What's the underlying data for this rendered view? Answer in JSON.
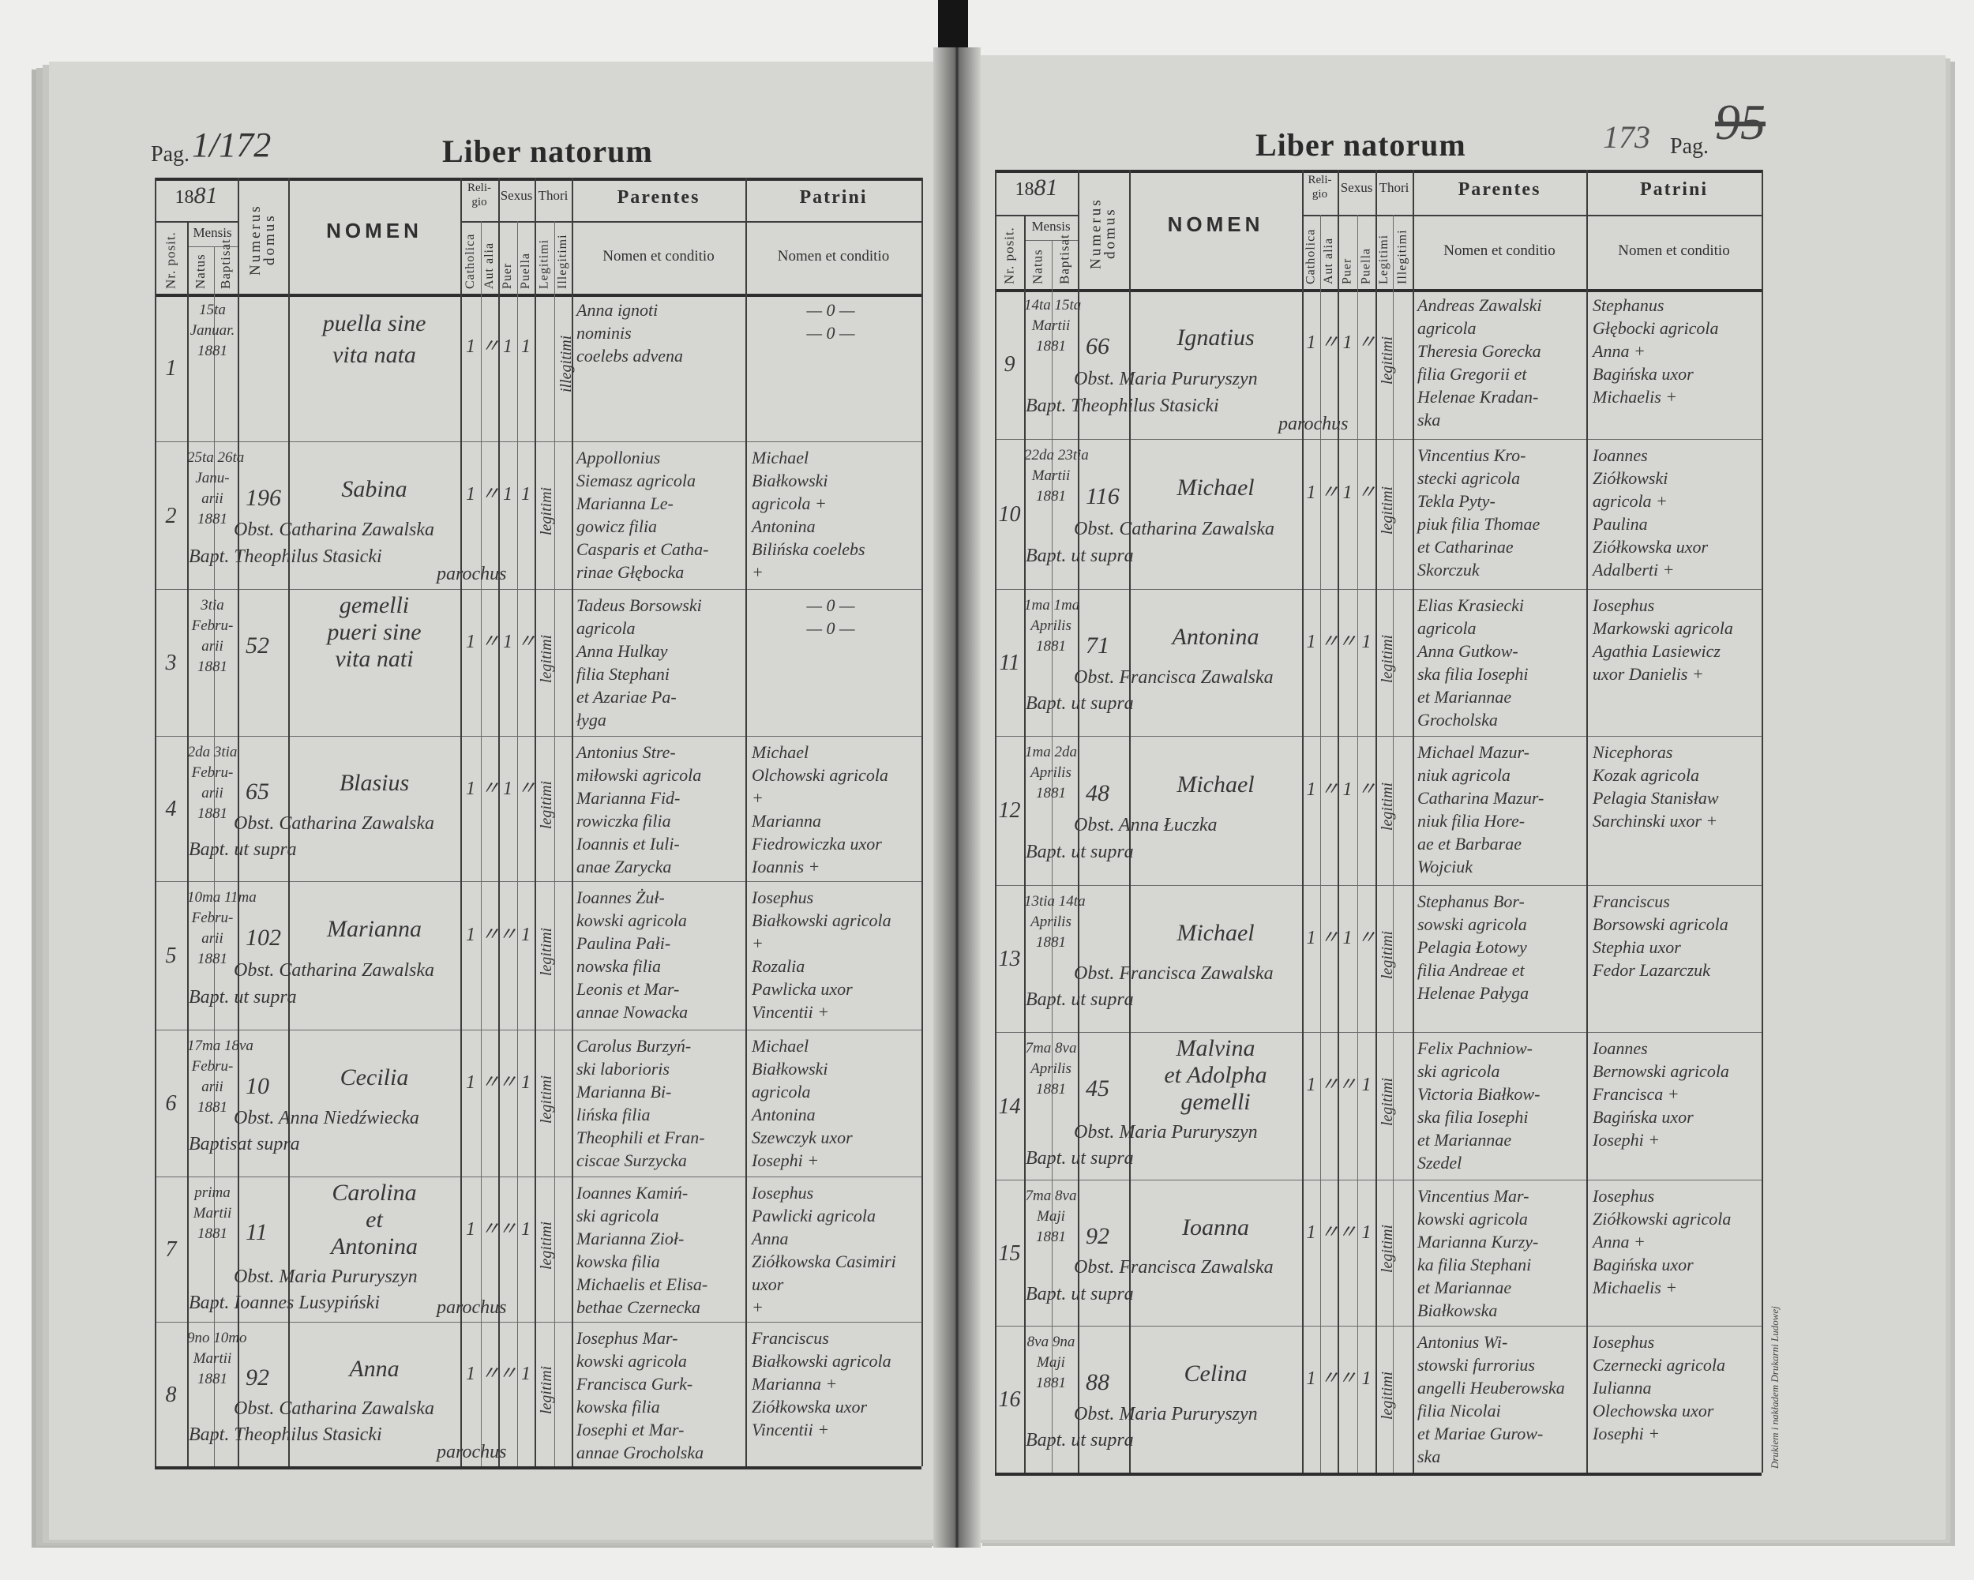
{
  "imprint": "Drukiem i nakładem Drukarni Ludowej",
  "header": {
    "year_prefix": "18",
    "nr_posit": "Nr. posit.",
    "mensis": "Mensis",
    "natus": "Natus",
    "baptisat": "Baptisat",
    "numerus_domus": "Numerus domus",
    "nomen": "NOMEN",
    "religio": "Reli-gio",
    "sexus": "Sexus",
    "thori": "Thori",
    "catholica": "Catholica",
    "aut_alia": "Aut alia",
    "puer": "Puer",
    "puella": "Puella",
    "legitimi": "Legitimi",
    "illegitimi": "Illegitimi",
    "parentes": "Parentes",
    "patrini": "Patrini",
    "nomen_et_conditio": "Nomen et conditio"
  },
  "left_page": {
    "title": "Liber natorum",
    "pag_label": "Pag.",
    "page_number_handwritten": "1/172",
    "year_handwritten": "81",
    "rows": [
      {
        "nr": "1",
        "date": [
          "15ta",
          "Januar.",
          "1881"
        ],
        "domus": "",
        "nomen": [
          "puella sine",
          "vita nata"
        ],
        "obst": "",
        "bapt": "",
        "bapt2": "",
        "cath": "1",
        "aut": "〃",
        "puer": "1",
        "puella": "1",
        "thori": "illegitimi",
        "thori_col": "illeg",
        "parentes": [
          "Anna ignoti",
          "nominis",
          "coelebs advena"
        ],
        "patrini": [
          "— 0 —",
          "",
          "— 0 —"
        ]
      },
      {
        "nr": "2",
        "date": [
          "25ta 26ta",
          "Janu-",
          "arii",
          "1881"
        ],
        "domus": "196",
        "nomen": [
          "Sabina"
        ],
        "obst": "Obst. Catharina Zawalska",
        "bapt": "Bapt. Theophilus Stasicki",
        "bapt2": "parochus",
        "cath": "1",
        "aut": "〃",
        "puer": "1",
        "puella": "1",
        "thori": "legitimi",
        "thori_col": "leg",
        "parentes": [
          "Appollonius",
          "Siemasz agricola",
          "Marianna Le-",
          "gowicz filia",
          "Casparis et Catha-",
          "rinae Głębocka"
        ],
        "patrini": [
          "Michael",
          "Białkowski",
          "agricola +",
          "Antonina",
          "Bilińska coelebs",
          "+"
        ]
      },
      {
        "nr": "3",
        "date": [
          "3tia",
          "Febru-",
          "arii",
          "1881"
        ],
        "domus": "52",
        "nomen": [
          "gemelli",
          "pueri sine",
          "vita nati"
        ],
        "obst": "",
        "bapt": "",
        "bapt2": "",
        "cath": "1",
        "aut": "〃",
        "puer": "1",
        "puella": "〃",
        "thori": "legitimi",
        "thori_col": "leg",
        "parentes": [
          "Tadeus Borsowski",
          "agricola",
          "Anna Hulkay",
          "filia Stephani",
          "et Azariae Pa-",
          "łyga"
        ],
        "patrini": [
          "",
          "— 0 —",
          "",
          "— 0 —"
        ]
      },
      {
        "nr": "4",
        "date": [
          "2da 3tia",
          "Febru-",
          "arii",
          "1881"
        ],
        "domus": "65",
        "nomen": [
          "Blasius"
        ],
        "obst": "Obst. Catharina Zawalska",
        "bapt": "Bapt. ut supra",
        "bapt2": "",
        "cath": "1",
        "aut": "〃",
        "puer": "1",
        "puella": "〃",
        "thori": "legitimi",
        "thori_col": "leg",
        "parentes": [
          "Antonius Stre-",
          "miłowski agricola",
          "Marianna Fid-",
          "rowiczka filia",
          "Ioannis et Iuli-",
          "anae Zarycka"
        ],
        "patrini": [
          "Michael",
          "Olchowski agricola",
          "+",
          "Marianna",
          "Fiedrowiczka uxor",
          "Ioannis +"
        ]
      },
      {
        "nr": "5",
        "date": [
          "10ma 11ma",
          "Febru-",
          "arii",
          "1881"
        ],
        "domus": "102",
        "nomen": [
          "Marianna"
        ],
        "obst": "Obst. Catharina Zawalska",
        "bapt": "Bapt. ut supra",
        "bapt2": "",
        "cath": "1",
        "aut": "〃",
        "puer": "〃",
        "puella": "1",
        "thori": "legitimi",
        "thori_col": "leg",
        "parentes": [
          "Ioannes Żuł-",
          "kowski agricola",
          "Paulina Pałi-",
          "nowska filia",
          "Leonis et Mar-",
          "annae Nowacka"
        ],
        "patrini": [
          "Iosephus",
          "Białkowski agricola",
          "+",
          "Rozalia",
          "Pawlicka uxor",
          "Vincentii +"
        ]
      },
      {
        "nr": "6",
        "date": [
          "17ma 18va",
          "Febru-",
          "arii",
          "1881"
        ],
        "domus": "10",
        "nomen": [
          "Cecilia"
        ],
        "obst": "Obst. Anna Niedźwiecka",
        "bapt": "Baptisat supra",
        "bapt2": "",
        "cath": "1",
        "aut": "〃",
        "puer": "〃",
        "puella": "1",
        "thori": "legitimi",
        "thori_col": "leg",
        "parentes": [
          "Carolus Burzyń-",
          "ski laborioris",
          "Marianna Bi-",
          "lińska filia",
          "Theophili et Fran-",
          "ciscae Surzycka"
        ],
        "patrini": [
          "Michael",
          "Białkowski",
          "agricola",
          "Antonina",
          "Szewczyk uxor",
          "Iosephi +"
        ]
      },
      {
        "nr": "7",
        "date": [
          "prima",
          "Martii",
          "1881"
        ],
        "domus": "11",
        "nomen": [
          "Carolina",
          "et",
          "Antonina"
        ],
        "obst": "Obst. Maria Pururyszyn",
        "bapt": "Bapt. Ioannes Lusypiński",
        "bapt2": "parochus",
        "cath": "1",
        "aut": "〃",
        "puer": "〃",
        "puella": "1",
        "thori": "legitimi",
        "thori_col": "leg",
        "parentes": [
          "Ioannes Kamiń-",
          "ski agricola",
          "Marianna Zioł-",
          "kowska filia",
          "Michaelis et Elisa-",
          "bethae Czernecka"
        ],
        "patrini": [
          "Iosephus",
          "Pawlicki agricola",
          "Anna",
          "Ziółkowska Casimiri",
          "uxor",
          "+"
        ]
      },
      {
        "nr": "8",
        "date": [
          "9no 10mo",
          "Martii",
          "1881"
        ],
        "domus": "92",
        "nomen": [
          "Anna"
        ],
        "obst": "Obst. Catharina Zawalska",
        "bapt": "Bapt. Theophilus Stasicki",
        "bapt2": "parochus",
        "cath": "1",
        "aut": "〃",
        "puer": "〃",
        "puella": "1",
        "thori": "legitimi",
        "thori_col": "leg",
        "parentes": [
          "Iosephus Mar-",
          "kowski agricola",
          "Francisca Gurk-",
          "kowska filia",
          "Iosephi et Mar-",
          "annae Grocholska"
        ],
        "patrini": [
          "Franciscus",
          "Białkowski agricola",
          "Marianna +",
          "Ziółkowska uxor",
          "Vincentii +"
        ]
      }
    ]
  },
  "right_page": {
    "title": "Liber natorum",
    "pag_label": "Pag.",
    "page_number_handwritten": "173",
    "page_number_crossed": "95",
    "year_handwritten": "81",
    "rows": [
      {
        "nr": "9",
        "date": [
          "14ta 15ta",
          "Martii",
          "1881"
        ],
        "domus": "66",
        "nomen": [
          "Ignatius"
        ],
        "obst": "Obst. Maria Pururyszyn",
        "bapt": "Bapt. Theophilus Stasicki",
        "bapt2": "parochus",
        "cath": "1",
        "aut": "〃",
        "puer": "1",
        "puella": "〃",
        "thori": "legitimi",
        "thori_col": "leg",
        "parentes": [
          "Andreas Zawalski",
          "agricola",
          "Theresia Gorecka",
          "filia Gregorii et",
          "Helenae Kradan-",
          "ska"
        ],
        "patrini": [
          "Stephanus",
          "Głębocki agricola",
          "Anna +",
          "Bagińska uxor",
          "Michaelis +"
        ]
      },
      {
        "nr": "10",
        "date": [
          "22da 23tia",
          "Martii",
          "1881"
        ],
        "domus": "116",
        "nomen": [
          "Michael"
        ],
        "obst": "Obst. Catharina Zawalska",
        "bapt": "Bapt. ut supra",
        "bapt2": "",
        "cath": "1",
        "aut": "〃",
        "puer": "1",
        "puella": "〃",
        "thori": "legitimi",
        "thori_col": "leg",
        "parentes": [
          "Vincentius Kro-",
          "stecki agricola",
          "Tekla Pyty-",
          "piuk filia Thomae",
          "et Catharinae",
          "Skorczuk"
        ],
        "patrini": [
          "Ioannes",
          "Ziółkowski",
          "agricola +",
          "Paulina",
          "Ziółkowska uxor",
          "Adalberti +"
        ]
      },
      {
        "nr": "11",
        "date": [
          "1ma 1ma",
          "Aprilis",
          "1881"
        ],
        "domus": "71",
        "nomen": [
          "Antonina"
        ],
        "obst": "Obst. Francisca Zawalska",
        "bapt": "Bapt. ut supra",
        "bapt2": "",
        "cath": "1",
        "aut": "〃",
        "puer": "〃",
        "puella": "1",
        "thori": "legitimi",
        "thori_col": "leg",
        "parentes": [
          "Elias Krasiecki",
          "agricola",
          "Anna Gutkow-",
          "ska filia Iosephi",
          "et Mariannae",
          "Grocholska"
        ],
        "patrini": [
          "Iosephus",
          "Markowski agricola",
          "Agathia Lasiewicz",
          "uxor Danielis +"
        ]
      },
      {
        "nr": "12",
        "date": [
          "1ma 2da",
          "Aprilis",
          "1881"
        ],
        "domus": "48",
        "nomen": [
          "Michael"
        ],
        "obst": "Obst. Anna Łuczka",
        "bapt": "Bapt. ut supra",
        "bapt2": "",
        "cath": "1",
        "aut": "〃",
        "puer": "1",
        "puella": "〃",
        "thori": "legitimi",
        "thori_col": "leg",
        "parentes": [
          "Michael Mazur-",
          "niuk agricola",
          "Catharina Mazur-",
          "niuk filia Hore-",
          "ae et Barbarae",
          "Wojciuk"
        ],
        "patrini": [
          "Nicephoras",
          "Kozak agricola",
          "Pelagia Stanisław",
          "Sarchinski uxor +"
        ]
      },
      {
        "nr": "13",
        "date": [
          "13tia 14ta",
          "Aprilis",
          "1881"
        ],
        "domus": "",
        "nomen": [
          "Michael"
        ],
        "obst": "Obst. Francisca Zawalska",
        "bapt": "Bapt. ut supra",
        "bapt2": "",
        "cath": "1",
        "aut": "〃",
        "puer": "1",
        "puella": "〃",
        "thori": "legitimi",
        "thori_col": "leg",
        "parentes": [
          "Stephanus Bor-",
          "sowski agricola",
          "Pelagia Łotowy",
          "filia Andreae et",
          "Helenae Pałyga"
        ],
        "patrini": [
          "Franciscus",
          "Borsowski agricola",
          "Stephia uxor",
          "Fedor Lazarczuk"
        ]
      },
      {
        "nr": "14",
        "date": [
          "7ma 8va",
          "Aprilis",
          "1881"
        ],
        "domus": "45",
        "nomen": [
          "Malvina",
          "et Adolpha",
          "gemelli"
        ],
        "obst": "Obst. Maria Pururyszyn",
        "bapt": "Bapt. ut supra",
        "bapt2": "",
        "cath": "1",
        "aut": "〃",
        "puer": "〃",
        "puella": "1",
        "thori": "legitimi",
        "thori_col": "leg",
        "parentes": [
          "Felix Pachniow-",
          "ski agricola",
          "Victoria Białkow-",
          "ska filia Iosephi",
          "et Mariannae",
          "Szedel"
        ],
        "patrini": [
          "Ioannes",
          "Bernowski agricola",
          "Francisca +",
          "Bagińska uxor",
          "Iosephi +"
        ]
      },
      {
        "nr": "15",
        "date": [
          "7ma 8va",
          "Maji",
          "1881"
        ],
        "domus": "92",
        "nomen": [
          "Ioanna"
        ],
        "obst": "Obst. Francisca Zawalska",
        "bapt": "Bapt. ut supra",
        "bapt2": "",
        "cath": "1",
        "aut": "〃",
        "puer": "〃",
        "puella": "1",
        "thori": "legitimi",
        "thori_col": "leg",
        "parentes": [
          "Vincentius Mar-",
          "kowski agricola",
          "Marianna Kurzy-",
          "ka filia Stephani",
          "et Mariannae",
          "Białkowska"
        ],
        "patrini": [
          "Iosephus",
          "Ziółkowski agricola",
          "Anna +",
          "Bagińska uxor",
          "Michaelis +"
        ]
      },
      {
        "nr": "16",
        "date": [
          "8va 9na",
          "Maji",
          "1881"
        ],
        "domus": "88",
        "nomen": [
          "Celina"
        ],
        "obst": "Obst. Maria Pururyszyn",
        "bapt": "Bapt. ut supra",
        "bapt2": "",
        "cath": "1",
        "aut": "〃",
        "puer": "〃",
        "puella": "1",
        "thori": "legitimi",
        "thori_col": "leg",
        "parentes": [
          "Antonius Wi-",
          "stowski furrorius",
          "angelli Heuberowska",
          "filia Nicolai",
          "et Mariae Gurow-",
          "ska"
        ],
        "patrini": [
          "Iosephus",
          "Czernecki agricola",
          "Iulianna",
          "Olechowska uxor",
          "Iosephi +"
        ]
      }
    ]
  }
}
